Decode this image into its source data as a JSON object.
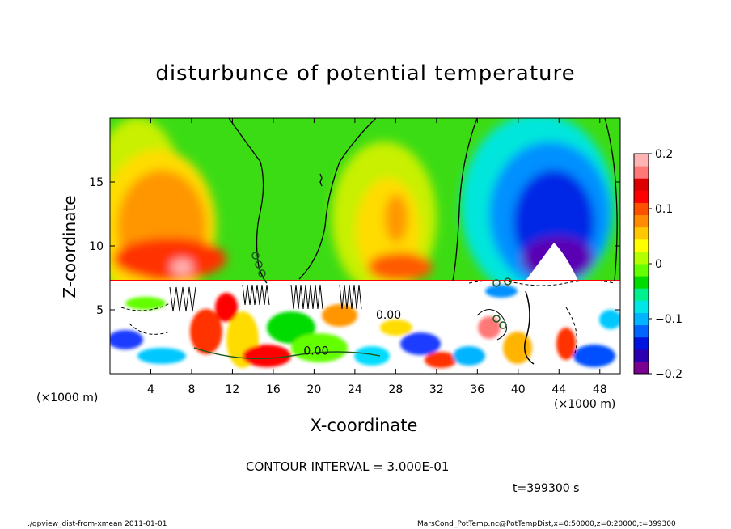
{
  "title": "disturbunce of potential temperature",
  "xlabel": "X-coordinate",
  "ylabel": "Z-coordinate",
  "x_unit_left": "(×1000 m)",
  "x_unit_right": "(×1000 m)",
  "contour_note": "CONTOUR INTERVAL = 3.000E-01",
  "time_note": "t=399300 s",
  "footer_left": "./gpview_dist-from-xmean   2011-01-01",
  "footer_right": "MarsCond_PotTemp.nc@PotTempDist,x=0:50000,z=0:20000,t=399300",
  "contour_labels": [
    "0.00",
    "0.00"
  ],
  "chart_data": {
    "type": "heatmap",
    "title": "disturbunce of potential temperature",
    "xlabel": "X-coordinate",
    "ylabel": "Z-coordinate",
    "xlim": [
      0,
      50
    ],
    "ylim": [
      0,
      20
    ],
    "x_ticks": [
      4,
      8,
      12,
      16,
      20,
      24,
      28,
      32,
      36,
      40,
      44,
      48
    ],
    "y_ticks": [
      5,
      10,
      15
    ],
    "colorbar": {
      "range": [
        -0.2,
        0.2
      ],
      "ticks": [
        0.2,
        0.1,
        0,
        -0.1,
        -0.2
      ],
      "tick_labels": [
        "0.2",
        "0.1",
        "0",
        "−0.1",
        "−0.2"
      ],
      "colors": [
        "#7a0090",
        "#2a00b0",
        "#0014e0",
        "#0064ff",
        "#00b4ff",
        "#00e6e6",
        "#00f090",
        "#00dc00",
        "#64ff00",
        "#b4ff00",
        "#ffff00",
        "#ffc800",
        "#ff8c00",
        "#ff5000",
        "#ff0000",
        "#dc0000",
        "#ff7878",
        "#ffb4b4"
      ]
    },
    "features": [
      {
        "x": 6,
        "z": 13,
        "value": 0.13
      },
      {
        "x": 27,
        "z": 12,
        "value": 0.1
      },
      {
        "x": 44,
        "z": 14,
        "value": -0.17
      },
      {
        "x": 44,
        "z": 9,
        "value": -0.2
      },
      {
        "x": 18,
        "z": 15,
        "value": 0.02
      }
    ]
  }
}
